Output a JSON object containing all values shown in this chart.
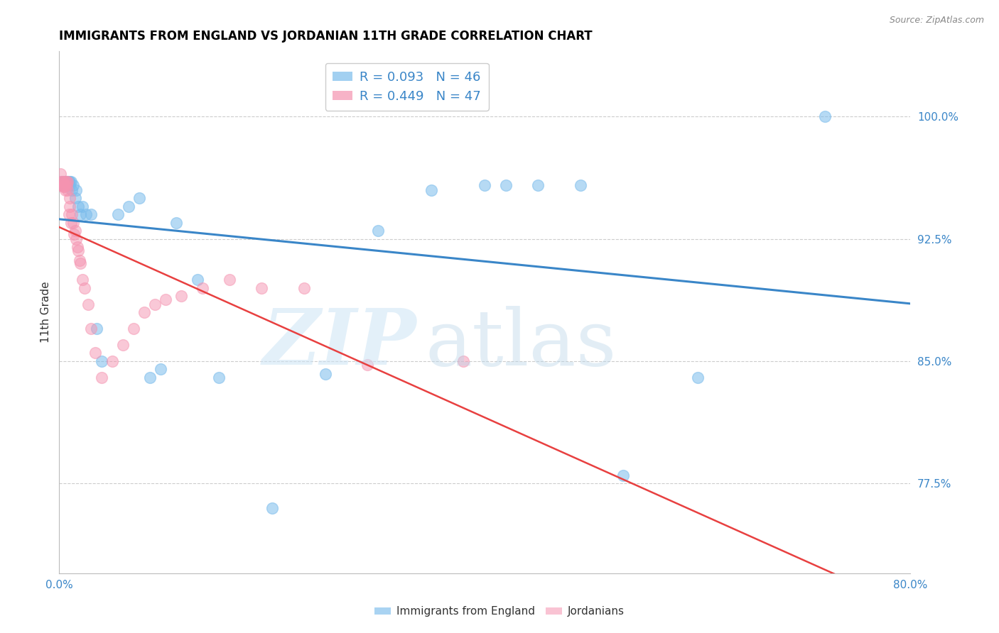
{
  "title": "IMMIGRANTS FROM ENGLAND VS JORDANIAN 11TH GRADE CORRELATION CHART",
  "source": "Source: ZipAtlas.com",
  "ylabel": "11th Grade",
  "ytick_labels": [
    "77.5%",
    "85.0%",
    "92.5%",
    "100.0%"
  ],
  "ytick_values": [
    0.775,
    0.85,
    0.925,
    1.0
  ],
  "xlim": [
    0.0,
    0.8
  ],
  "ylim": [
    0.72,
    1.04
  ],
  "legend_blue_r": "R = 0.093",
  "legend_blue_n": "N = 46",
  "legend_pink_r": "R = 0.449",
  "legend_pink_n": "N = 47",
  "legend_label_blue": "Immigrants from England",
  "legend_label_pink": "Jordanians",
  "blue_color": "#7bbcec",
  "pink_color": "#f593b0",
  "trendline_blue_color": "#3a86c8",
  "trendline_pink_color": "#e84040",
  "blue_scatter_x": [
    0.002,
    0.003,
    0.004,
    0.004,
    0.005,
    0.005,
    0.006,
    0.006,
    0.007,
    0.007,
    0.008,
    0.008,
    0.009,
    0.01,
    0.01,
    0.011,
    0.012,
    0.013,
    0.015,
    0.016,
    0.018,
    0.02,
    0.022,
    0.025,
    0.03,
    0.035,
    0.04,
    0.055,
    0.065,
    0.075,
    0.085,
    0.095,
    0.11,
    0.13,
    0.15,
    0.2,
    0.25,
    0.3,
    0.35,
    0.4,
    0.42,
    0.45,
    0.49,
    0.53,
    0.6,
    0.72
  ],
  "blue_scatter_y": [
    0.96,
    0.958,
    0.96,
    0.958,
    0.96,
    0.958,
    0.96,
    0.96,
    0.96,
    0.958,
    0.96,
    0.958,
    0.96,
    0.958,
    0.96,
    0.96,
    0.955,
    0.958,
    0.95,
    0.955,
    0.945,
    0.94,
    0.945,
    0.94,
    0.94,
    0.87,
    0.85,
    0.94,
    0.945,
    0.95,
    0.84,
    0.845,
    0.935,
    0.9,
    0.84,
    0.76,
    0.842,
    0.93,
    0.955,
    0.958,
    0.958,
    0.958,
    0.958,
    0.78,
    0.84,
    1.0
  ],
  "pink_scatter_x": [
    0.001,
    0.002,
    0.002,
    0.003,
    0.003,
    0.004,
    0.004,
    0.005,
    0.005,
    0.006,
    0.006,
    0.007,
    0.007,
    0.008,
    0.008,
    0.009,
    0.01,
    0.01,
    0.011,
    0.012,
    0.013,
    0.014,
    0.015,
    0.016,
    0.017,
    0.018,
    0.019,
    0.02,
    0.022,
    0.024,
    0.027,
    0.03,
    0.034,
    0.04,
    0.05,
    0.06,
    0.07,
    0.08,
    0.09,
    0.1,
    0.115,
    0.135,
    0.16,
    0.19,
    0.23,
    0.29,
    0.38
  ],
  "pink_scatter_y": [
    0.965,
    0.96,
    0.958,
    0.96,
    0.958,
    0.957,
    0.96,
    0.958,
    0.957,
    0.96,
    0.955,
    0.96,
    0.958,
    0.96,
    0.955,
    0.94,
    0.95,
    0.945,
    0.935,
    0.94,
    0.935,
    0.928,
    0.93,
    0.925,
    0.92,
    0.918,
    0.912,
    0.91,
    0.9,
    0.895,
    0.885,
    0.87,
    0.855,
    0.84,
    0.85,
    0.86,
    0.87,
    0.88,
    0.885,
    0.888,
    0.89,
    0.895,
    0.9,
    0.895,
    0.895,
    0.848,
    0.85
  ],
  "watermark_zip": "ZIP",
  "watermark_atlas": "atlas",
  "background_color": "#ffffff",
  "grid_color": "#cccccc",
  "grid_style": "--"
}
